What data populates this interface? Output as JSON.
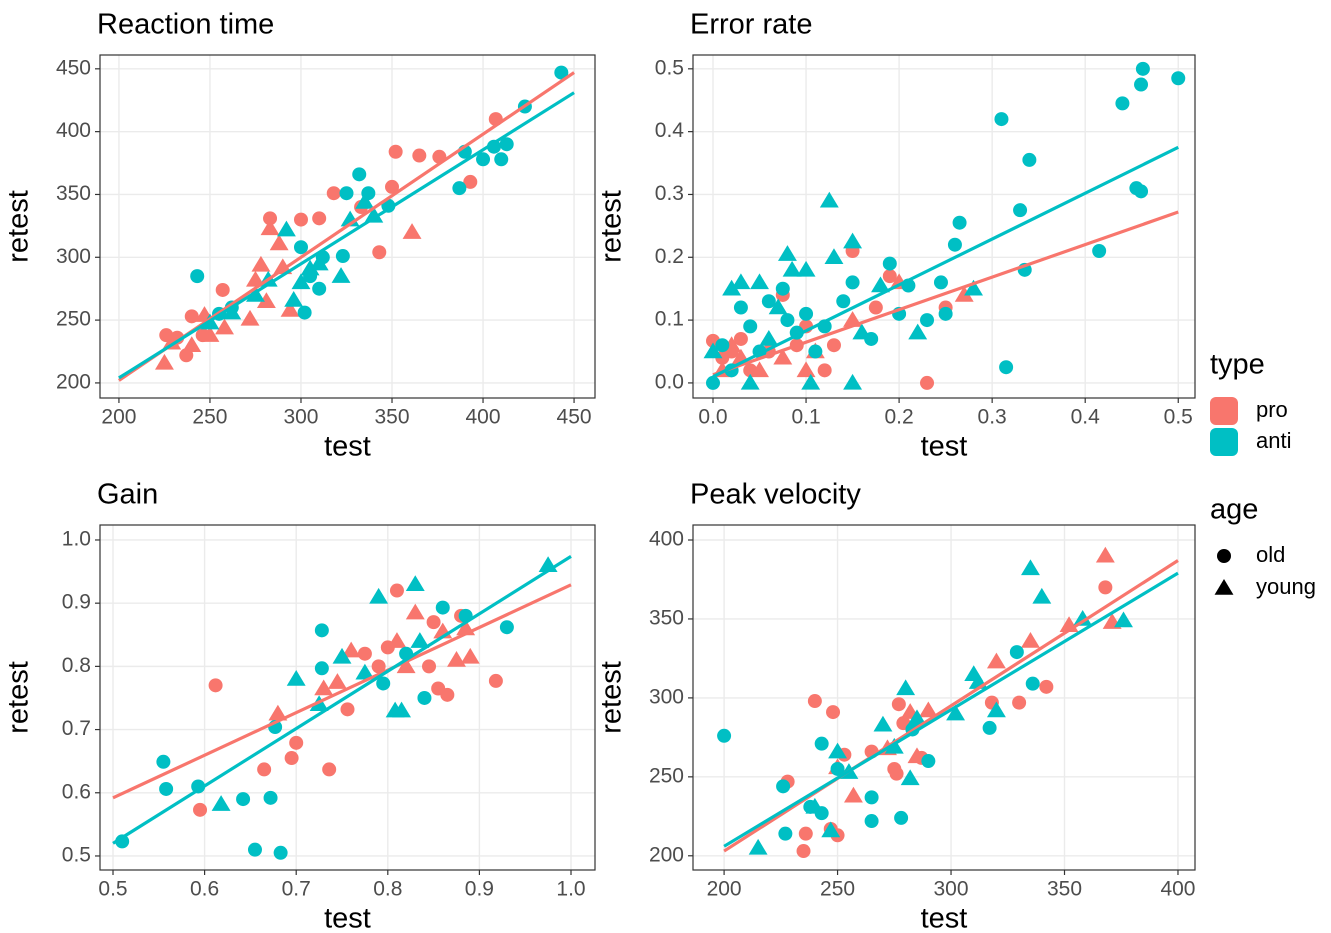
{
  "chart_data": [
    {
      "type": "scatter",
      "title": "Reaction time",
      "x_label": "test",
      "y_label": "retest",
      "xlim": [
        189.6,
        461.5
      ],
      "ylim": [
        188,
        461
      ],
      "xticks": [
        200,
        250,
        300,
        350,
        400,
        450
      ],
      "yticks": [
        200,
        250,
        300,
        350,
        400,
        450
      ],
      "grid": true,
      "series": [
        {
          "name": "pro",
          "age": "old",
          "color": "#F8766D",
          "marker": "circle",
          "x": [
            226,
            232,
            237,
            240,
            246,
            257,
            283,
            300,
            310,
            318,
            333,
            343,
            350,
            352,
            365,
            376,
            393,
            407
          ],
          "y": [
            238,
            236,
            222,
            253,
            238,
            274,
            331,
            330,
            331,
            351,
            340,
            304,
            356,
            384,
            381,
            380,
            360,
            410
          ]
        },
        {
          "name": "pro",
          "age": "young",
          "color": "#F8766D",
          "marker": "triangle",
          "x": [
            225,
            229,
            240,
            247,
            250,
            258,
            272,
            275,
            278,
            281,
            283,
            288,
            290,
            294,
            361
          ],
          "y": [
            216,
            232,
            230,
            254,
            238,
            244,
            251,
            282,
            294,
            265,
            323,
            311,
            292,
            258,
            320
          ]
        },
        {
          "name": "anti",
          "age": "old",
          "color": "#00BFC4",
          "marker": "circle",
          "x": [
            243,
            255,
            262,
            300,
            302,
            305,
            310,
            312,
            323,
            325,
            332,
            337,
            348,
            387,
            390,
            400,
            406,
            410,
            413,
            423,
            443
          ],
          "y": [
            285,
            255,
            260,
            308,
            256,
            285,
            275,
            300,
            301,
            351,
            366,
            351,
            341,
            355,
            384,
            378,
            388,
            378,
            390,
            420,
            447
          ]
        },
        {
          "name": "anti",
          "age": "young",
          "color": "#00BFC4",
          "marker": "triangle",
          "x": [
            250,
            262,
            275,
            282,
            292,
            296,
            300,
            305,
            310,
            322,
            327,
            335,
            340
          ],
          "y": [
            248,
            256,
            270,
            282,
            322,
            266,
            280,
            291,
            295,
            285,
            330,
            344,
            333
          ]
        }
      ],
      "fits": [
        {
          "color": "#F8766D",
          "x": [
            200,
            450
          ],
          "y": [
            202,
            447
          ]
        },
        {
          "color": "#00BFC4",
          "x": [
            200,
            450
          ],
          "y": [
            204,
            431
          ]
        }
      ]
    },
    {
      "type": "scatter",
      "title": "Error rate",
      "x_label": "test",
      "y_label": "retest",
      "xlim": [
        -0.0215,
        0.518
      ],
      "ylim": [
        -0.024,
        0.522
      ],
      "xticks": [
        {
          "value": 0,
          "label": "0.0"
        },
        0.1,
        0.2,
        0.3,
        0.4,
        0.5
      ],
      "yticks": [
        {
          "value": 0,
          "label": "0.0"
        },
        0.1,
        0.2,
        0.3,
        0.4,
        0.5
      ],
      "grid": true,
      "series": [
        {
          "name": "pro",
          "age": "old",
          "color": "#F8766D",
          "marker": "circle",
          "x": [
            0,
            0.01,
            0.02,
            0.03,
            0.04,
            0.06,
            0.075,
            0.09,
            0.1,
            0.12,
            0.13,
            0.15,
            0.175,
            0.19,
            0.23,
            0.25
          ],
          "y": [
            0.067,
            0.04,
            0.05,
            0.07,
            0.02,
            0.05,
            0.14,
            0.06,
            0.09,
            0.02,
            0.06,
            0.21,
            0.12,
            0.17,
            0,
            0.12
          ]
        },
        {
          "name": "pro",
          "age": "young",
          "color": "#F8766D",
          "marker": "triangle",
          "x": [
            0.01,
            0.02,
            0.03,
            0.05,
            0.075,
            0.1,
            0.11,
            0.15,
            0.2,
            0.27
          ],
          "y": [
            0.02,
            0.06,
            0.04,
            0.02,
            0.04,
            0.02,
            0.05,
            0.1,
            0.16,
            0.14
          ]
        },
        {
          "name": "anti",
          "age": "old",
          "color": "#00BFC4",
          "marker": "circle",
          "x": [
            0,
            0.01,
            0.02,
            0.03,
            0.04,
            0.05,
            0.06,
            0.075,
            0.08,
            0.09,
            0.1,
            0.11,
            0.12,
            0.14,
            0.15,
            0.17,
            0.19,
            0.2,
            0.21,
            0.23,
            0.245,
            0.25,
            0.26,
            0.265,
            0.31,
            0.315,
            0.33,
            0.335,
            0.34,
            0.415,
            0.44,
            0.455,
            0.46,
            0.46,
            0.462,
            0.5
          ],
          "y": [
            0,
            0.06,
            0.02,
            0.12,
            0.09,
            0.05,
            0.13,
            0.15,
            0.1,
            0.08,
            0.11,
            0.05,
            0.09,
            0.13,
            0.16,
            0.07,
            0.19,
            0.11,
            0.155,
            0.1,
            0.16,
            0.11,
            0.22,
            0.255,
            0.42,
            0.025,
            0.275,
            0.18,
            0.355,
            0.21,
            0.445,
            0.31,
            0.305,
            0.475,
            0.5,
            0.485
          ]
        },
        {
          "name": "anti",
          "age": "young",
          "color": "#00BFC4",
          "marker": "triangle",
          "x": [
            0,
            0.02,
            0.03,
            0.04,
            0.05,
            0.06,
            0.07,
            0.08,
            0.085,
            0.1,
            0.105,
            0.125,
            0.13,
            0.15,
            0.15,
            0.16,
            0.18,
            0.22,
            0.28
          ],
          "y": [
            0.05,
            0.15,
            0.16,
            0,
            0.16,
            0.07,
            0.12,
            0.205,
            0.18,
            0.18,
            0,
            0.29,
            0.2,
            0.225,
            0,
            0.08,
            0.155,
            0.08,
            0.15
          ]
        }
      ],
      "fits": [
        {
          "color": "#F8766D",
          "x": [
            0,
            0.5
          ],
          "y": [
            0.013,
            0.272
          ]
        },
        {
          "color": "#00BFC4",
          "x": [
            0,
            0.5
          ],
          "y": [
            0.01,
            0.375
          ]
        }
      ]
    },
    {
      "type": "scatter",
      "title": "Gain",
      "x_label": "test",
      "y_label": "retest",
      "xlim": [
        0.4858,
        1.0262
      ],
      "ylim": [
        0.4778,
        1.0237
      ],
      "xticks": [
        0.5,
        0.6,
        0.7,
        0.8,
        0.9,
        {
          "value": 1,
          "label": "1.0"
        }
      ],
      "yticks": [
        0.5,
        0.6,
        0.7,
        0.8,
        0.9,
        {
          "value": 1,
          "label": "1.0"
        }
      ],
      "grid": true,
      "series": [
        {
          "name": "pro",
          "age": "old",
          "color": "#F8766D",
          "marker": "circle",
          "x": [
            0.595,
            0.612,
            0.665,
            0.695,
            0.7,
            0.736,
            0.756,
            0.775,
            0.79,
            0.8,
            0.81,
            0.845,
            0.85,
            0.855,
            0.865,
            0.88,
            0.918
          ],
          "y": [
            0.573,
            0.77,
            0.637,
            0.655,
            0.679,
            0.637,
            0.732,
            0.82,
            0.8,
            0.83,
            0.92,
            0.8,
            0.87,
            0.765,
            0.755,
            0.88,
            0.777
          ]
        },
        {
          "name": "pro",
          "age": "young",
          "color": "#F8766D",
          "marker": "triangle",
          "x": [
            0.68,
            0.73,
            0.745,
            0.76,
            0.81,
            0.82,
            0.83,
            0.86,
            0.875,
            0.89,
            0.885
          ],
          "y": [
            0.725,
            0.765,
            0.775,
            0.825,
            0.84,
            0.8,
            0.885,
            0.855,
            0.81,
            0.815,
            0.86
          ]
        },
        {
          "name": "anti",
          "age": "old",
          "color": "#00BFC4",
          "marker": "circle",
          "x": [
            0.51,
            0.555,
            0.558,
            0.593,
            0.642,
            0.655,
            0.672,
            0.677,
            0.683,
            0.728,
            0.728,
            0.795,
            0.82,
            0.84,
            0.86,
            0.885,
            0.93
          ],
          "y": [
            0.523,
            0.649,
            0.606,
            0.61,
            0.59,
            0.51,
            0.592,
            0.704,
            0.505,
            0.857,
            0.797,
            0.773,
            0.82,
            0.75,
            0.893,
            0.88,
            0.862
          ]
        },
        {
          "name": "anti",
          "age": "young",
          "color": "#00BFC4",
          "marker": "triangle",
          "x": [
            0.618,
            0.7,
            0.725,
            0.75,
            0.775,
            0.79,
            0.808,
            0.815,
            0.83,
            0.835,
            0.975
          ],
          "y": [
            0.582,
            0.78,
            0.74,
            0.815,
            0.79,
            0.91,
            0.73,
            0.73,
            0.93,
            0.84,
            0.96
          ]
        }
      ],
      "fits": [
        {
          "color": "#F8766D",
          "x": [
            0.5,
            1
          ],
          "y": [
            0.592,
            0.929
          ]
        },
        {
          "color": "#00BFC4",
          "x": [
            0.5,
            1
          ],
          "y": [
            0.52,
            0.974
          ]
        }
      ]
    },
    {
      "type": "scatter",
      "title": "Peak velocity",
      "x_label": "test",
      "y_label": "retest",
      "xlim": [
        186.3,
        407.5
      ],
      "ylim": [
        191,
        409.5
      ],
      "xticks": [
        200,
        250,
        300,
        350,
        400
      ],
      "yticks": [
        200,
        250,
        300,
        350,
        400
      ],
      "grid": true,
      "series": [
        {
          "name": "pro",
          "age": "old",
          "color": "#F8766D",
          "marker": "circle",
          "x": [
            228,
            235,
            236,
            240,
            247,
            248,
            250,
            253,
            265,
            275,
            276,
            277,
            279,
            287,
            318,
            330,
            342,
            368
          ],
          "y": [
            247,
            203,
            214,
            298,
            217,
            291,
            213,
            264,
            266,
            255,
            252,
            296,
            284,
            262,
            297,
            297,
            307,
            370
          ]
        },
        {
          "name": "pro",
          "age": "young",
          "color": "#F8766D",
          "marker": "triangle",
          "x": [
            250,
            257,
            272,
            282,
            285,
            290,
            320,
            335,
            352,
            368,
            371
          ],
          "y": [
            256,
            238,
            268,
            291,
            263,
            292,
            323,
            336,
            346,
            390,
            348
          ]
        },
        {
          "name": "anti",
          "age": "old",
          "color": "#00BFC4",
          "marker": "circle",
          "x": [
            200,
            226,
            227,
            238,
            243,
            243,
            250,
            265,
            265,
            278,
            283,
            290,
            317,
            329,
            336
          ],
          "y": [
            276,
            244,
            214,
            231,
            227,
            271,
            255,
            237,
            222,
            224,
            280,
            260,
            281,
            329,
            309
          ]
        },
        {
          "name": "anti",
          "age": "young",
          "color": "#00BFC4",
          "marker": "triangle",
          "x": [
            215,
            240,
            247,
            250,
            255,
            270,
            275,
            280,
            282,
            285,
            302,
            310,
            312,
            320,
            335,
            340,
            358,
            376
          ],
          "y": [
            205,
            231,
            216,
            266,
            253,
            283,
            269,
            306,
            249,
            287,
            290,
            315,
            310,
            292,
            382,
            364,
            350,
            349
          ]
        }
      ],
      "fits": [
        {
          "color": "#F8766D",
          "x": [
            200,
            400
          ],
          "y": [
            203,
            387
          ]
        },
        {
          "color": "#00BFC4",
          "x": [
            200,
            400
          ],
          "y": [
            206,
            379
          ]
        }
      ]
    }
  ],
  "legend": {
    "type": {
      "title": "type",
      "entries": [
        {
          "label": "pro",
          "color": "#F8766D"
        },
        {
          "label": "anti",
          "color": "#00BFC4"
        }
      ]
    },
    "age": {
      "title": "age",
      "entries": [
        {
          "label": "old",
          "marker": "circle"
        },
        {
          "label": "young",
          "marker": "triangle"
        }
      ]
    }
  }
}
